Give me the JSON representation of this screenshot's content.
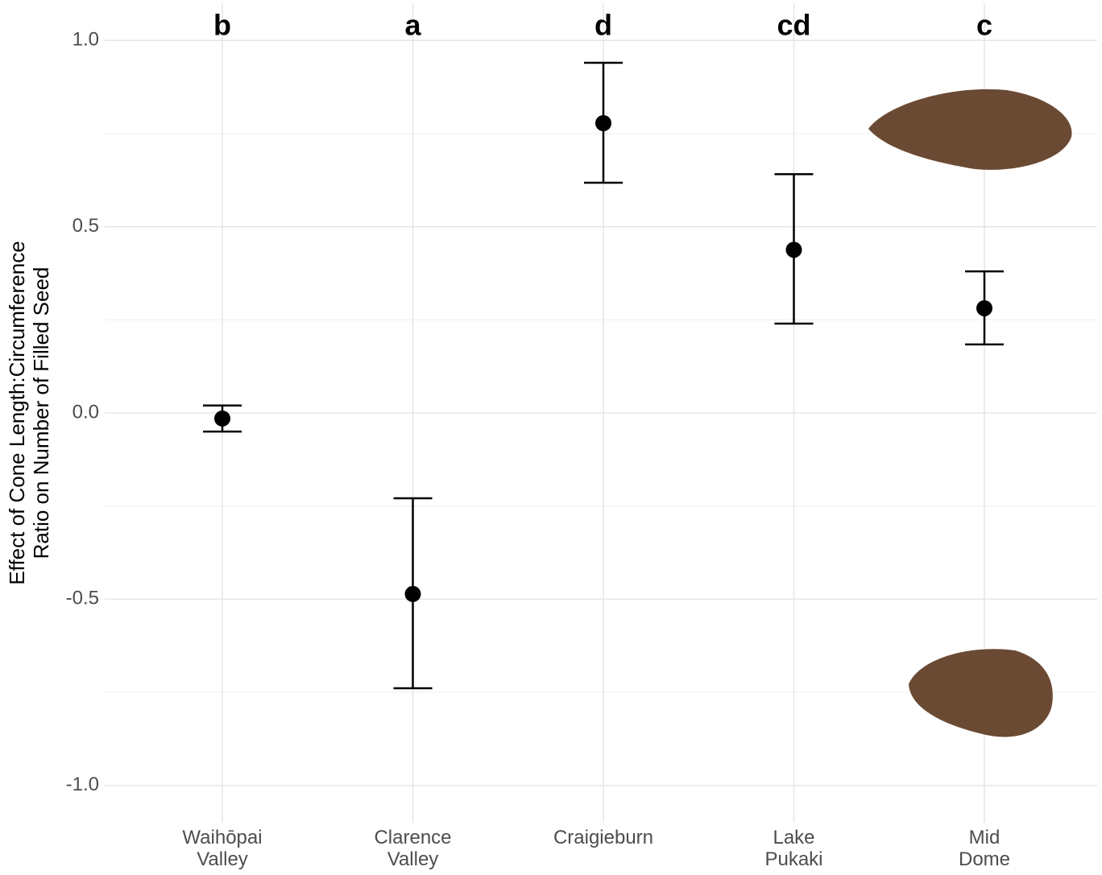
{
  "chart_data": {
    "type": "pointrange",
    "y_label": [
      "Effect of Cone Length:Circumference",
      "Ratio on Number of Filled Seed"
    ],
    "categories": [
      [
        "Waihōpai",
        "Valley"
      ],
      [
        "Clarence",
        "Valley"
      ],
      [
        "Craigieburn"
      ],
      [
        "Lake",
        "Pukaki"
      ],
      [
        "Mid",
        "Dome"
      ]
    ],
    "values": [
      -0.015,
      -0.486,
      0.778,
      0.438,
      0.281
    ],
    "lower": [
      -0.05,
      -0.739,
      0.618,
      0.24,
      0.184
    ],
    "upper": [
      0.02,
      -0.229,
      0.94,
      0.641,
      0.38
    ],
    "annotations": [
      "b",
      "a",
      "d",
      "cd",
      "c"
    ],
    "color": "#000000",
    "ylim": [
      -1.1,
      1.1
    ],
    "yticks": [
      {
        "value": -1,
        "label": "-1.0"
      },
      -0.5,
      {
        "value": 0,
        "label": "0.0"
      },
      0.5,
      {
        "value": 1,
        "label": "1.0"
      }
    ],
    "minor_yticks": [
      -0.75,
      -0.25,
      0.25,
      0.75
    ],
    "grid": true
  }
}
